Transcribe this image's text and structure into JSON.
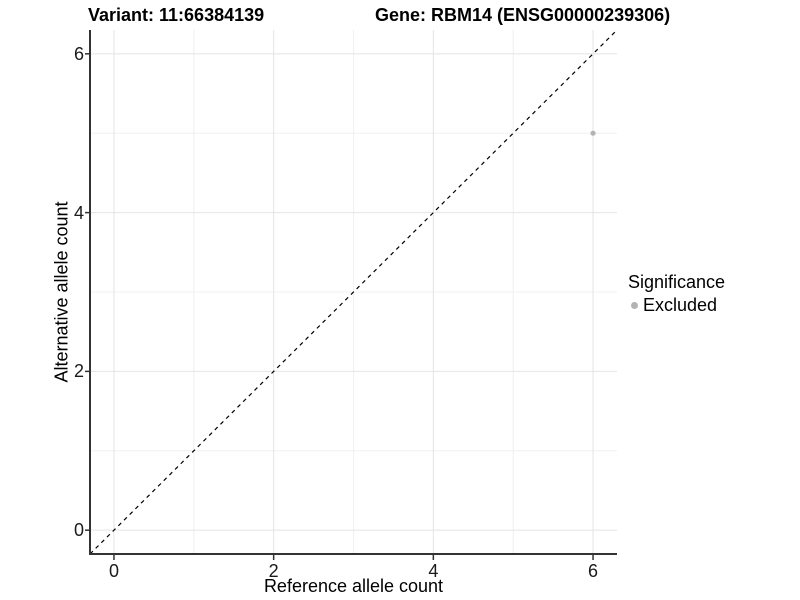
{
  "chart_data": {
    "type": "scatter",
    "title_left": "Variant: 11:66384139",
    "title_right": "Gene: RBM14 (ENSG00000239306)",
    "xlabel": "Reference allele count",
    "ylabel": "Alternative allele count",
    "xlim": [
      -0.3,
      6.3
    ],
    "ylim": [
      -0.3,
      6.3
    ],
    "xticks": [
      0,
      2,
      4,
      6
    ],
    "yticks": [
      0,
      2,
      4,
      6
    ],
    "minor_xticks": [
      1,
      3,
      5
    ],
    "minor_yticks": [
      1,
      3,
      5
    ],
    "grid": true,
    "points": [
      {
        "x": 6,
        "y": 5,
        "series": "Excluded"
      }
    ],
    "reference_line": {
      "type": "identity",
      "style": "dashed",
      "color": "#000000"
    },
    "legend": {
      "title": "Significance",
      "position": "right",
      "items": [
        {
          "label": "Excluded",
          "color": "#b3b3b3"
        }
      ]
    },
    "colors": {
      "point": "#b3b3b3",
      "grid_major": "#e4e4e4",
      "grid_minor": "#f0f0f0",
      "axis_line": "#333333",
      "tick_mark": "#333333"
    }
  }
}
